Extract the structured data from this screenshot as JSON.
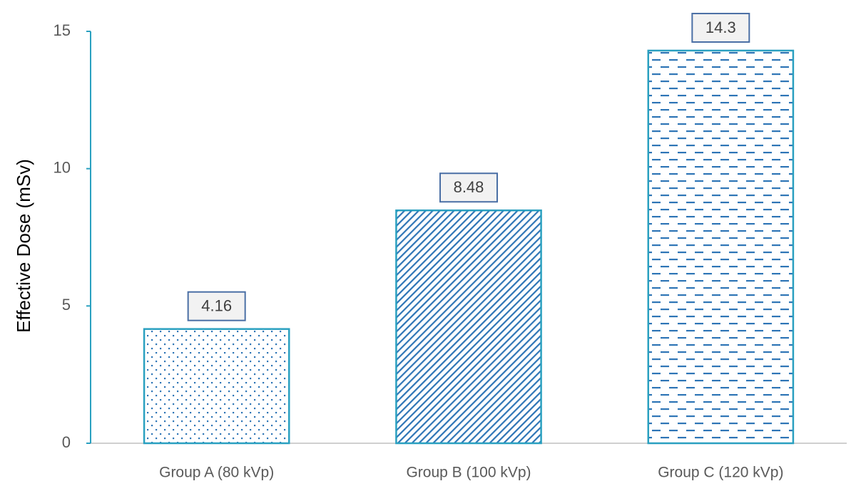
{
  "chart_data": {
    "type": "bar",
    "y_label": "Effective Dose (mSv)",
    "categories": [
      "Group A (80 kVp)",
      "Group B (100 kVp)",
      "Group C (120 kVp)"
    ],
    "values": [
      4.16,
      8.48,
      14.3
    ],
    "patterns": [
      "dots",
      "diagonal",
      "dashes"
    ],
    "color": "#2e75b6",
    "edge_color": "#2aa0c0",
    "ylim": [
      0,
      15
    ],
    "yticks": [
      0,
      5,
      10,
      15
    ],
    "grid": false
  }
}
